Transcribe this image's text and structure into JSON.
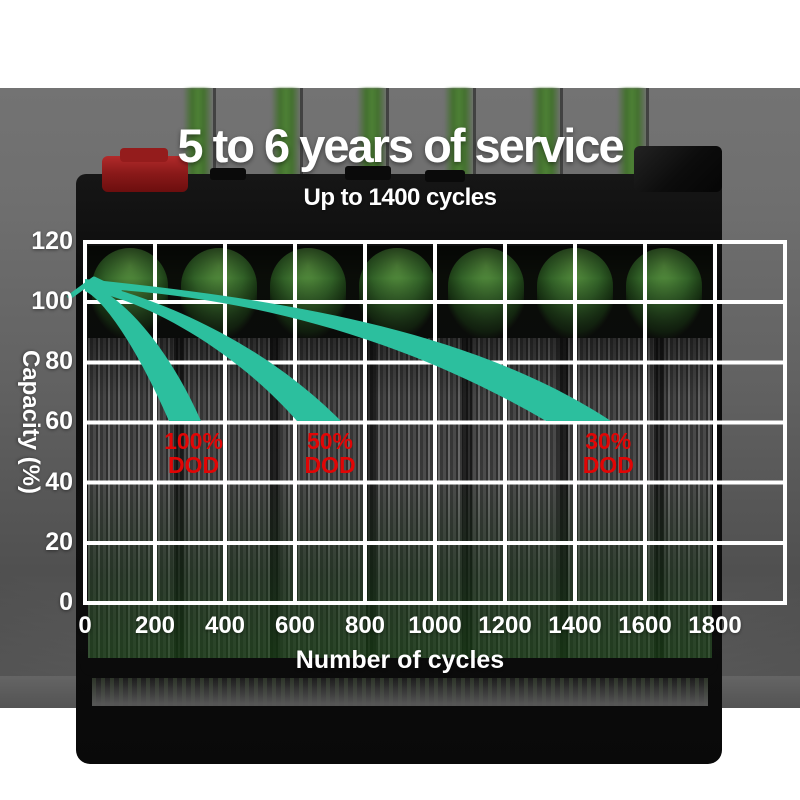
{
  "banner": {
    "title": "5 to 6 years of service",
    "subtitle": "Up to 1400 cycles"
  },
  "chart_data": {
    "type": "area",
    "title": "5 to 6 years of service",
    "subtitle": "Up to 1400 cycles",
    "xlabel": "Number of cycles",
    "ylabel": "Capacity (%)",
    "xlim": [
      0,
      2000
    ],
    "ylim": [
      0,
      120
    ],
    "grid": true,
    "xticks": [
      "0",
      "200",
      "400",
      "600",
      "800",
      "1000",
      "1200",
      "1400",
      "1600",
      "1800"
    ],
    "yticks": [
      "120",
      "100",
      "80",
      "60",
      "40",
      "20",
      "0"
    ],
    "band_color": "#2cbf9e",
    "annotation_color": "#e20505",
    "grid_color": "#ffffff",
    "series": [
      {
        "name": "100% DOD",
        "points": [
          [
            0,
            105
          ],
          [
            100,
            96
          ],
          [
            200,
            81
          ],
          [
            310,
            60
          ]
        ]
      },
      {
        "name": "50% DOD",
        "points": [
          [
            0,
            105
          ],
          [
            200,
            93
          ],
          [
            400,
            80
          ],
          [
            700,
            60
          ]
        ]
      },
      {
        "name": "30% DOD",
        "points": [
          [
            0,
            105
          ],
          [
            400,
            96
          ],
          [
            800,
            87
          ],
          [
            1200,
            74
          ],
          [
            1500,
            60
          ]
        ]
      }
    ],
    "annotations": [
      {
        "line1": "100%",
        "line2": "DOD",
        "at_cycles": 310
      },
      {
        "line1": "50%",
        "line2": "DOD",
        "at_cycles": 700
      },
      {
        "line1": "30%",
        "line2": "DOD",
        "at_cycles": 1495
      }
    ]
  }
}
